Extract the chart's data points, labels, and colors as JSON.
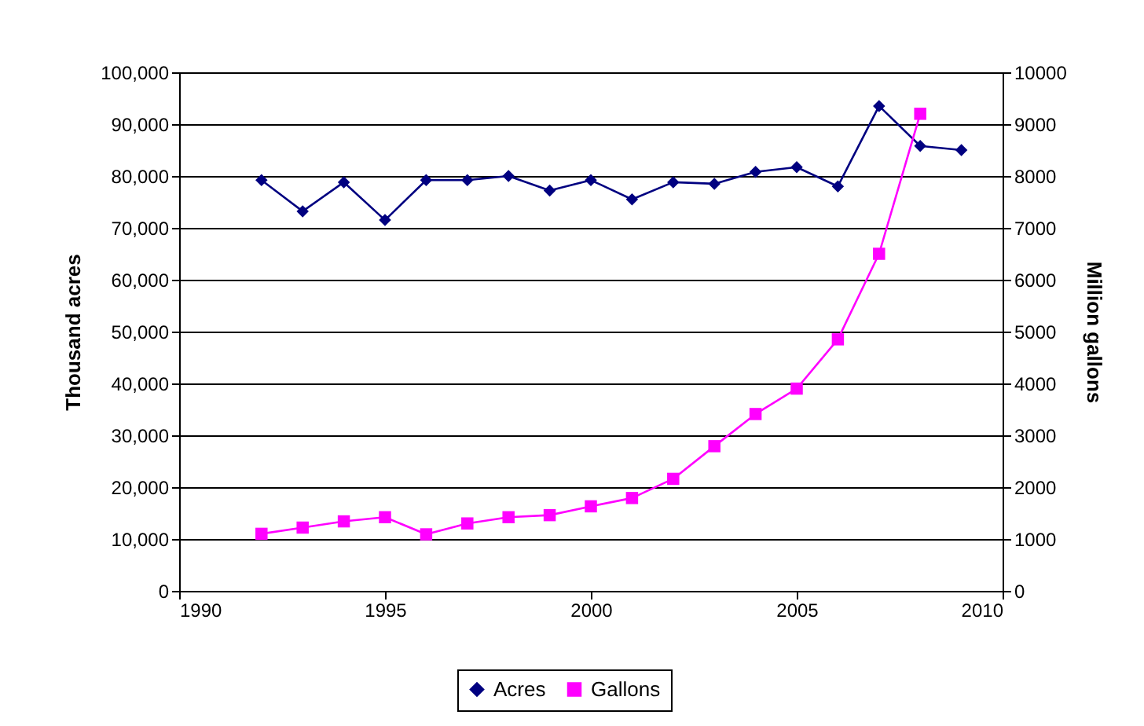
{
  "chart_data": {
    "type": "line",
    "ylabel": "Thousand acres",
    "y2label": "Million gallons",
    "x": [
      1992,
      1993,
      1994,
      1995,
      1996,
      1997,
      1998,
      1999,
      2000,
      2001,
      2002,
      2003,
      2004,
      2005,
      2006,
      2007,
      2008,
      2009
    ],
    "series": [
      {
        "name": "Acres",
        "color": "#000080",
        "marker": "diamond",
        "values": [
          79200,
          73200,
          78800,
          71500,
          79200,
          79200,
          80000,
          77200,
          79200,
          75500,
          78800,
          78500,
          80800,
          81700,
          78000,
          93500,
          85800,
          85000
        ]
      },
      {
        "name": "Gallons",
        "color": "#ff00ff",
        "marker": "square",
        "axis": "y2",
        "values": [
          1100,
          1220,
          1340,
          1420,
          1090,
          1300,
          1420,
          1460,
          1630,
          1790,
          2160,
          2790,
          3410,
          3900,
          4850,
          6500,
          9200,
          null
        ]
      }
    ],
    "xlim": [
      1990,
      2010
    ],
    "xticks": [
      1990,
      1995,
      2000,
      2005,
      2010
    ],
    "ylim": [
      0,
      100000
    ],
    "yticks": [
      0,
      {
        "value": 10000,
        "label": "10,000"
      },
      {
        "value": 20000,
        "label": "20,000"
      },
      {
        "value": 30000,
        "label": "30,000"
      },
      {
        "value": 40000,
        "label": "40,000"
      },
      {
        "value": 50000,
        "label": "50,000"
      },
      {
        "value": 60000,
        "label": "60,000"
      },
      {
        "value": 70000,
        "label": "70,000"
      },
      {
        "value": 80000,
        "label": "80,000"
      },
      {
        "value": 90000,
        "label": "90,000"
      },
      {
        "value": 100000,
        "label": "100,000"
      }
    ],
    "y2lim": [
      0,
      10000
    ],
    "y2ticks": [
      0,
      1000,
      2000,
      3000,
      4000,
      5000,
      6000,
      7000,
      8000,
      9000,
      10000
    ],
    "grid": "y",
    "legend": "bottom",
    "line_style": "solid"
  }
}
